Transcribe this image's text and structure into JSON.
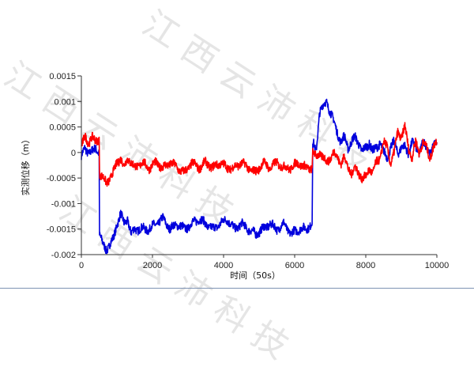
{
  "chart_data": {
    "type": "line",
    "title": "",
    "xlabel": "时间（50s）",
    "ylabel": "实测位移（m）",
    "xlim": [
      0,
      10000
    ],
    "ylim": [
      -0.002,
      0.0015
    ],
    "x_ticks": [
      "0",
      "2000",
      "4000",
      "6000",
      "8000",
      "10000"
    ],
    "y_ticks": [
      "0.0015",
      "0.001",
      "0.0005",
      "0",
      "-0.0005",
      "-0.001",
      "-0.0015",
      "-0.002"
    ],
    "grid": false,
    "legend": null,
    "x": [
      0,
      100,
      200,
      300,
      400,
      500,
      510,
      600,
      700,
      800,
      900,
      1000,
      1100,
      1200,
      1300,
      1400,
      1500,
      1700,
      1900,
      2100,
      2300,
      2500,
      2700,
      2900,
      3100,
      3300,
      3500,
      3700,
      3900,
      4100,
      4300,
      4500,
      4700,
      4900,
      5100,
      5300,
      5500,
      5700,
      5900,
      6100,
      6300,
      6490,
      6510,
      6600,
      6700,
      6800,
      6900,
      7000,
      7100,
      7200,
      7300,
      7400,
      7500,
      7600,
      7700,
      7800,
      7900,
      8000,
      8100,
      8200,
      8300,
      8400,
      8500,
      8600,
      8700,
      8800,
      8900,
      9000,
      9100,
      9200,
      9300,
      9400,
      9500,
      9600,
      9700,
      9800,
      9900,
      10000
    ],
    "series": [
      {
        "name": "red",
        "color": "#ff0000",
        "values": [
          0.0001,
          0.0003,
          0.0002,
          0.0003,
          0.0002,
          0.0003,
          -0.0004,
          -0.0005,
          -0.0006,
          -0.0005,
          -0.0004,
          -0.0002,
          -0.0001,
          -0.0003,
          -0.0001,
          -0.0002,
          -0.0003,
          -0.0002,
          -0.0003,
          -0.0002,
          -0.0003,
          -0.0002,
          -0.0003,
          -0.0004,
          -0.0002,
          -0.0003,
          -0.0002,
          -0.0003,
          -0.0002,
          -0.0003,
          -0.0003,
          -0.0002,
          -0.0003,
          -0.0004,
          -0.0002,
          -0.0003,
          -0.0002,
          -0.0003,
          -0.0003,
          -0.0002,
          -0.0003,
          -0.0003,
          0.0,
          -0.0001,
          0.0,
          -0.0001,
          -0.0002,
          -0.0001,
          0.0,
          -0.0001,
          -0.0002,
          -0.0001,
          -0.0003,
          -0.0004,
          -0.0003,
          -0.0004,
          -0.0005,
          -0.0005,
          -0.0003,
          -0.0004,
          -0.0002,
          -0.0001,
          0.0002,
          0.0001,
          -0.0002,
          0.0,
          0.0004,
          0.0003,
          0.0005,
          0.0001,
          -0.0001,
          0.0002,
          0.0,
          0.0002,
          0.0001,
          -0.0001,
          0.0001,
          0.0002
        ]
      },
      {
        "name": "blue",
        "color": "#0000dd",
        "values": [
          -0.0001,
          0.0001,
          0.0,
          0.0,
          0.0001,
          0.0,
          -0.0016,
          -0.0018,
          -0.0019,
          -0.0018,
          -0.0017,
          -0.0014,
          -0.0012,
          -0.0014,
          -0.0013,
          -0.0016,
          -0.0015,
          -0.0015,
          -0.0015,
          -0.0014,
          -0.0013,
          -0.0015,
          -0.0014,
          -0.0015,
          -0.0014,
          -0.0013,
          -0.0014,
          -0.0015,
          -0.0014,
          -0.0013,
          -0.0015,
          -0.0014,
          -0.0015,
          -0.0016,
          -0.0015,
          -0.0014,
          -0.0015,
          -0.0014,
          -0.0016,
          -0.0015,
          -0.0015,
          -0.0014,
          0.0002,
          0.0,
          0.0008,
          0.0009,
          0.001,
          0.0008,
          0.0006,
          0.0004,
          0.0002,
          0.0003,
          0.0001,
          0.0002,
          0.0003,
          0.0002,
          0.0,
          0.0001,
          0.0002,
          0.0,
          0.0001,
          0.0002,
          0.0,
          -0.0001,
          0.0001,
          0.0002,
          0.0,
          0.0001,
          0.0001,
          0.0,
          0.0002,
          0.0001,
          0.0,
          0.0002,
          0.0001,
          0.0,
          0.0001,
          0.0002
        ]
      }
    ]
  },
  "watermark": {
    "text": "江西云沛科技"
  }
}
